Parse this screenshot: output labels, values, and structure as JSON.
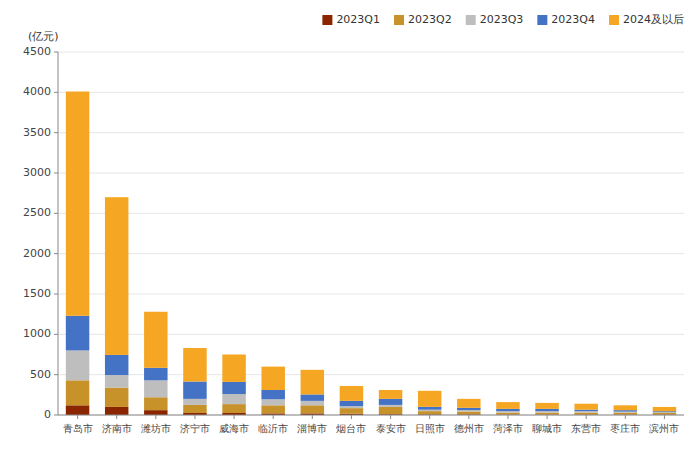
{
  "chart_data": {
    "type": "bar",
    "stacked": true,
    "ylabel": "(亿元)",
    "categories": [
      "青岛市",
      "济南市",
      "潍坊市",
      "济宁市",
      "威海市",
      "临沂市",
      "淄博市",
      "烟台市",
      "泰安市",
      "日照市",
      "德州市",
      "菏泽市",
      "聊城市",
      "东营市",
      "枣庄市",
      "滨州市"
    ],
    "series": [
      {
        "name": "2023Q1",
        "color": "#8B2500",
        "values": [
          120,
          100,
          60,
          25,
          25,
          20,
          20,
          15,
          10,
          8,
          8,
          5,
          5,
          5,
          5,
          5
        ]
      },
      {
        "name": "2023Q2",
        "color": "#C8922A",
        "values": [
          310,
          240,
          160,
          100,
          110,
          100,
          100,
          70,
          90,
          40,
          35,
          25,
          25,
          25,
          25,
          20
        ]
      },
      {
        "name": "2023Q3",
        "color": "#BEBEBE",
        "values": [
          370,
          155,
          210,
          75,
          125,
          75,
          55,
          25,
          25,
          18,
          18,
          18,
          18,
          18,
          12,
          12
        ]
      },
      {
        "name": "2023Q4",
        "color": "#4472C4",
        "values": [
          430,
          250,
          155,
          215,
          150,
          115,
          80,
          65,
          75,
          35,
          28,
          28,
          28,
          18,
          18,
          10
        ]
      },
      {
        "name": "2024及以后",
        "color": "#F5A623",
        "values": [
          2780,
          1955,
          695,
          415,
          340,
          290,
          305,
          185,
          110,
          199,
          111,
          84,
          74,
          74,
          60,
          53
        ]
      }
    ],
    "ylim": [
      0,
      4500
    ],
    "yticks": [
      0,
      500,
      1000,
      1500,
      2000,
      2500,
      3000,
      3500,
      4000,
      4500
    ],
    "grid": true,
    "legend": "upper right"
  }
}
